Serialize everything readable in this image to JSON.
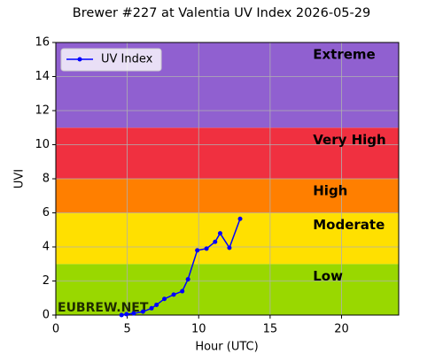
{
  "chart_data": {
    "type": "line",
    "title": "Brewer #227 at Valentia UV Index 2026-05-29",
    "x_label": "Hour (UTC)",
    "y_label": "UVI",
    "xlim": [
      0,
      24
    ],
    "xticks": [
      0,
      5,
      10,
      15,
      20
    ],
    "ylim": [
      0,
      16
    ],
    "yticks": [
      0,
      2,
      4,
      6,
      8,
      10,
      12,
      14,
      16
    ],
    "grid": true,
    "legend": "upper left",
    "bands": [
      {
        "name": "Low",
        "from": 0,
        "to": 3,
        "color": "#99d800"
      },
      {
        "name": "Moderate",
        "from": 3,
        "to": 6,
        "color": "#ffe000"
      },
      {
        "name": "High",
        "from": 6,
        "to": 8,
        "color": "#ff7f00"
      },
      {
        "name": "Very High",
        "from": 8,
        "to": 11,
        "color": "#f03040"
      },
      {
        "name": "Extreme",
        "from": 11,
        "to": 16,
        "color": "#9060d0"
      }
    ],
    "band_label_x": 18,
    "logo": "EUBREW.NET",
    "series": [
      {
        "name": "UV Index",
        "color": "#0000ff",
        "x": [
          4.6,
          4.95,
          5.45,
          6.1,
          6.7,
          7.05,
          7.6,
          8.25,
          8.85,
          9.25,
          9.9,
          10.55,
          11.15,
          11.5,
          12.15,
          12.9
        ],
        "values": [
          0,
          0.05,
          0.1,
          0.2,
          0.4,
          0.6,
          0.95,
          1.2,
          1.4,
          2.1,
          3.8,
          3.9,
          4.3,
          4.8,
          3.95,
          5.65
        ]
      }
    ]
  }
}
